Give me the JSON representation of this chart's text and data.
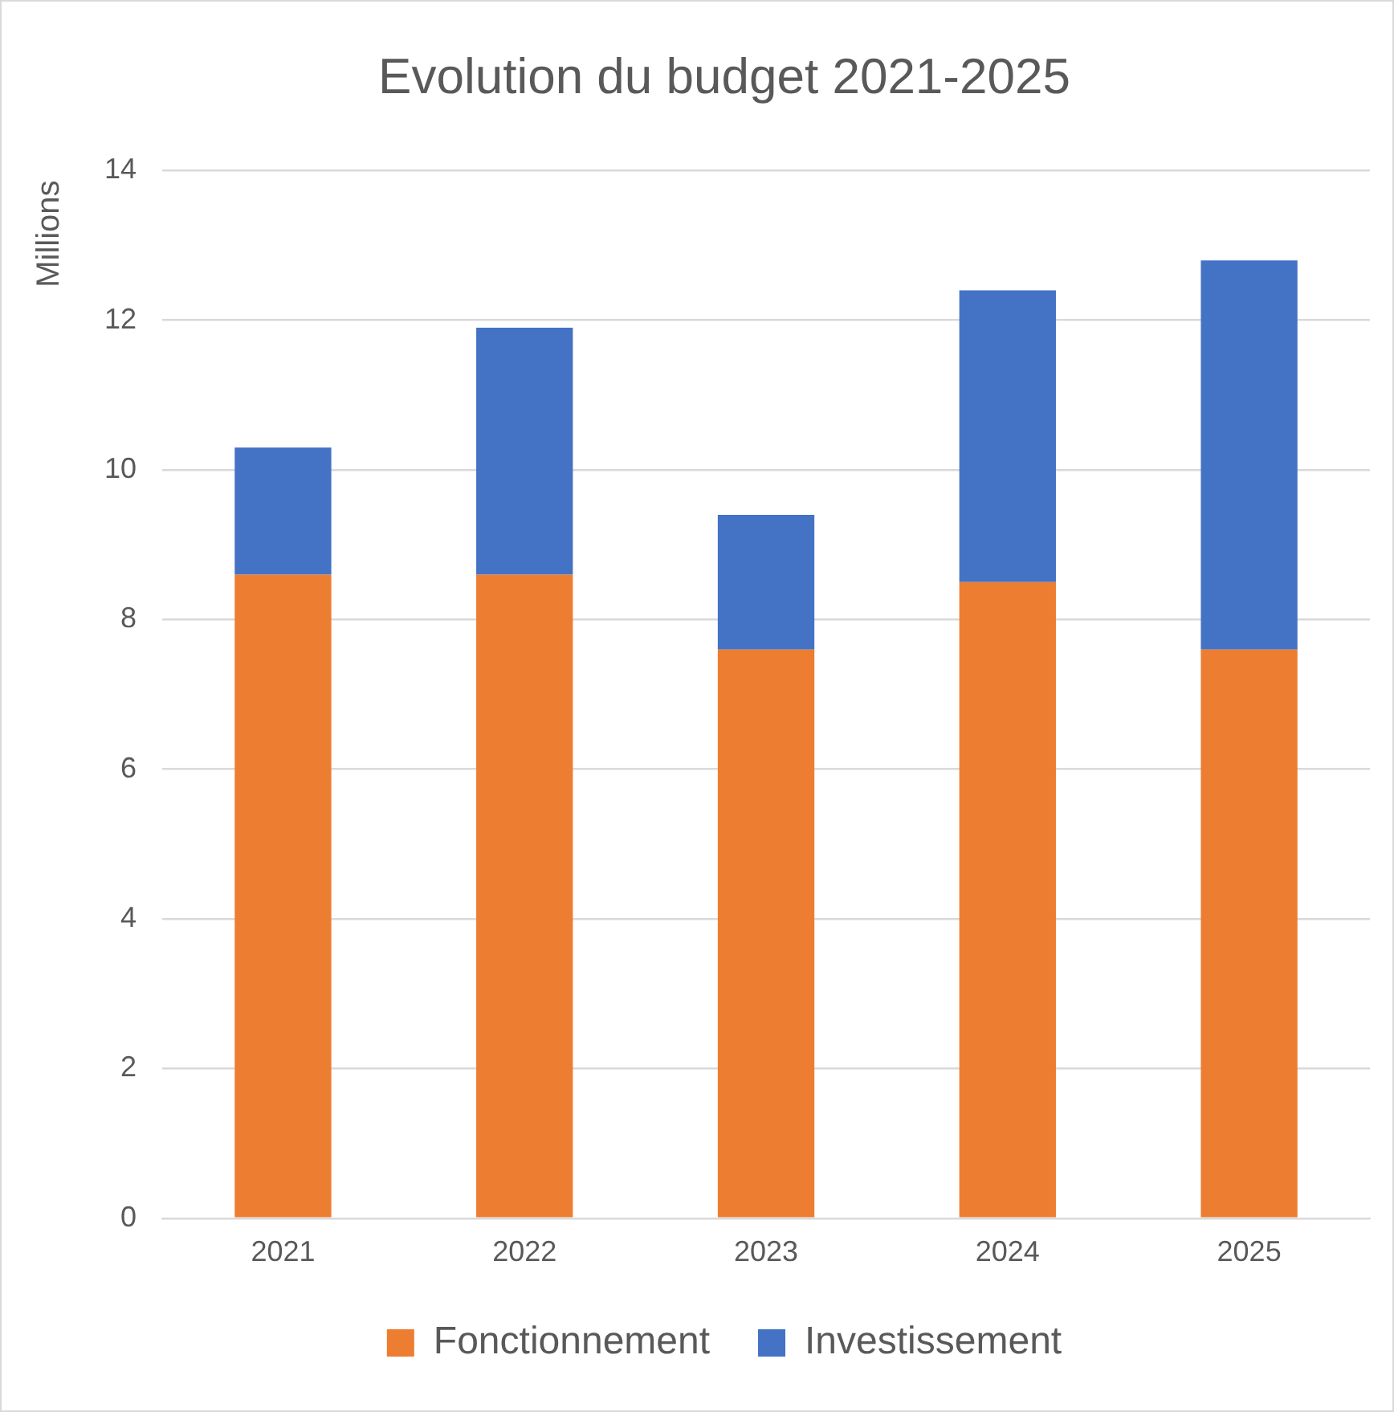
{
  "chart_data": {
    "type": "bar",
    "title": "Evolution du budget 2021-2025",
    "ylabel": "Millions",
    "stacked": true,
    "categories": [
      "2021",
      "2022",
      "2023",
      "2024",
      "2025"
    ],
    "series": [
      {
        "name": "Fonctionnement",
        "color": "#ed7d31",
        "values": [
          8.6,
          8.6,
          7.6,
          8.5,
          7.6
        ]
      },
      {
        "name": "Investissement",
        "color": "#4472c4",
        "values": [
          1.7,
          3.3,
          1.8,
          3.9,
          5.2
        ]
      }
    ],
    "ylim": [
      0,
      14
    ],
    "yticks": [
      0,
      2,
      4,
      6,
      8,
      10,
      12,
      14
    ],
    "grid": "y",
    "legend": "bottom"
  }
}
